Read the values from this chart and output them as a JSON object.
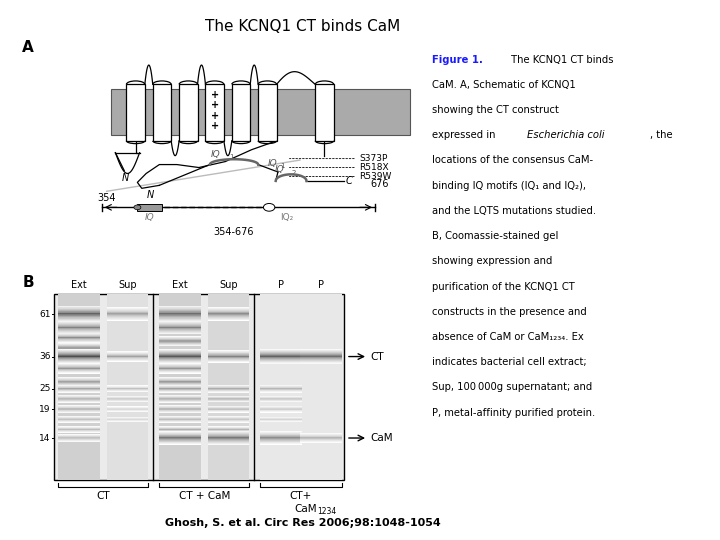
{
  "title": "The KCNQ1 CT binds CaM",
  "title_fontsize": 11,
  "title_color": "#000000",
  "bg_color": "#ffffff",
  "fig_width": 7.2,
  "fig_height": 5.4,
  "caption_bold_color": "#1a1aff",
  "citation": "Ghosh, S. et al. Circ Res 2006;98:1048-1054",
  "gel_labels_top": [
    "Ext",
    "Sup",
    "Ext",
    "Sup",
    "P",
    "P"
  ],
  "gel_kda": [
    "61",
    "36",
    "25",
    "19",
    "14"
  ],
  "ct_label": "CT",
  "cam_label": "CaM",
  "gel_group1": "CT",
  "gel_group2": "CT + CaM",
  "gel_group3": "CT+",
  "gel_group3b": "CaM",
  "gel_group3c": "1234",
  "gray_mem": "#999999",
  "helix_fill": "#ffffff",
  "helix_edge": "#000000"
}
